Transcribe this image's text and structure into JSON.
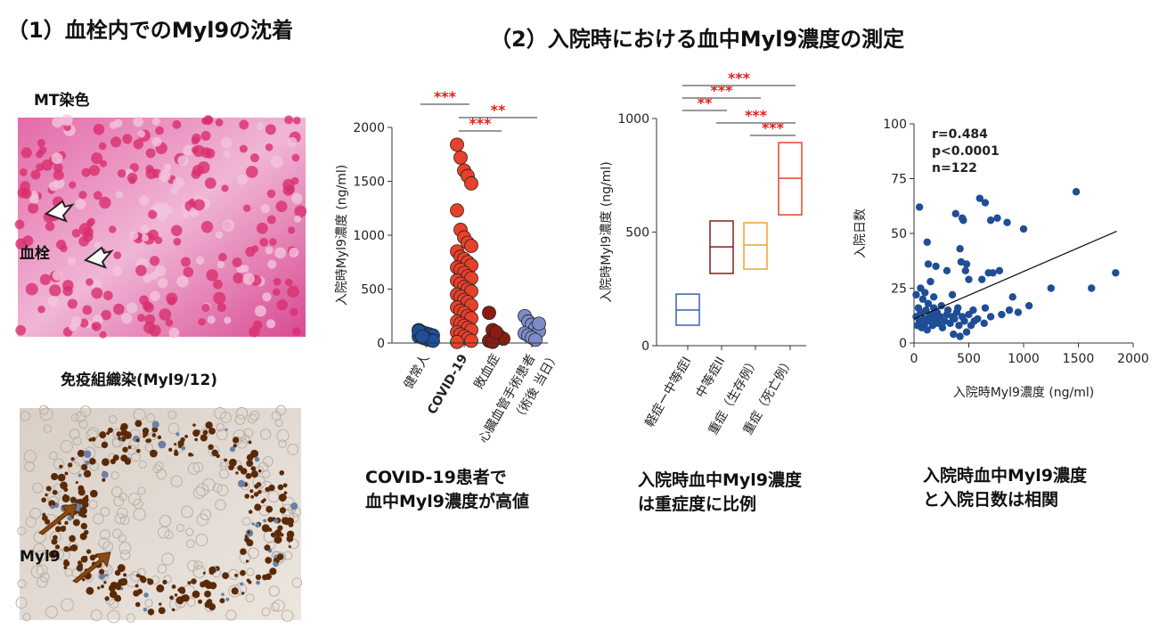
{
  "left": {
    "title": "（1）血栓内でのMyl9の沈着",
    "panels": [
      {
        "label": "MT染色",
        "annotation": "血栓"
      },
      {
        "label": "免疫組織染(Myl9/12)",
        "annotation": "Myl9"
      }
    ]
  },
  "right_title": "（2）入院時における血中Myl9濃度の測定",
  "chart_data": [
    {
      "type": "strip",
      "ylabel": "入院時Myl9濃度 (ng/ml)",
      "categories": [
        "健常人",
        "COVID-19",
        "敗血症",
        "心臓血管手術患者"
      ],
      "category_note": "（術後 当日）",
      "colors": [
        "#1f4e96",
        "#e8402a",
        "#8b1c12",
        "#7d8cc8"
      ],
      "values": [
        [
          120,
          100,
          90,
          80,
          70,
          60,
          50,
          40,
          30,
          20,
          110,
          60
        ],
        [
          1840,
          1720,
          1600,
          1550,
          1480,
          1230,
          1050,
          980,
          930,
          900,
          850,
          800,
          780,
          750,
          720,
          700,
          680,
          650,
          620,
          600,
          580,
          550,
          520,
          500,
          480,
          450,
          430,
          400,
          380,
          350,
          330,
          300,
          280,
          250,
          230,
          200,
          180,
          160,
          140,
          120,
          100,
          80,
          60,
          40,
          20,
          10
        ],
        [
          280,
          120,
          90,
          60,
          40,
          20,
          10,
          100
        ],
        [
          250,
          200,
          170,
          140,
          110,
          90,
          70,
          50,
          30,
          180
        ]
      ],
      "ylim": [
        0,
        2000
      ],
      "yticks": [
        0,
        500,
        1000,
        1500,
        2000
      ],
      "significance": [
        {
          "label": "***",
          "between": [
            "健常人",
            "COVID-19"
          ]
        },
        {
          "label": "**",
          "between": [
            "COVID-19",
            "心臓血管手術患者"
          ]
        },
        {
          "label": "***",
          "between": [
            "COVID-19",
            "敗血症"
          ]
        }
      ],
      "caption": [
        "COVID-19患者で",
        "血中Myl9濃度が高値"
      ]
    },
    {
      "type": "range",
      "ylabel": "入院時Myl9濃度 (ng/ml)",
      "categories": [
        "軽症ー中等症I",
        "中等症II",
        "重症（生存例）",
        "重症（死亡例）"
      ],
      "colors": [
        "#3a5fb0",
        "#8b1a1a",
        "#f0a030",
        "#e8452e"
      ],
      "low": [
        90,
        318,
        337,
        576
      ],
      "mid": [
        157,
        435,
        443,
        737
      ],
      "high": [
        227,
        549,
        541,
        894
      ],
      "ylim": [
        0,
        1000
      ],
      "yticks": [
        0,
        500,
        1000
      ],
      "significance": [
        {
          "label": "***",
          "between": [
            "軽症ー中等症I",
            "重症（死亡例）"
          ]
        },
        {
          "label": "***",
          "between": [
            "軽症ー中等症I",
            "重症（生存例）"
          ]
        },
        {
          "label": "**",
          "between": [
            "軽症ー中等症I",
            "中等症II"
          ]
        },
        {
          "label": "***",
          "between": [
            "中等症II",
            "重症（死亡例）"
          ]
        },
        {
          "label": "***",
          "between": [
            "重症（生存例）",
            "重症（死亡例）"
          ]
        }
      ],
      "caption": [
        "入院時血中Myl9濃度",
        "は重症度に比例"
      ]
    },
    {
      "type": "scatter",
      "xlabel": "入院時Myl9濃度 (ng/ml)",
      "ylabel": "入院日数",
      "color": "#1f4e96",
      "x": [
        50,
        120,
        130,
        200,
        300,
        350,
        380,
        420,
        430,
        440,
        450,
        470,
        480,
        500,
        600,
        650,
        620,
        680,
        700,
        720,
        760,
        850,
        780,
        870,
        900,
        950,
        1000,
        1050,
        1250,
        1480,
        1620,
        1840,
        800,
        650,
        550,
        520,
        480,
        420,
        360,
        20,
        30,
        40,
        50,
        60,
        70,
        80,
        90,
        100,
        110,
        120,
        130,
        140,
        150,
        160,
        170,
        180,
        200,
        210,
        220,
        240,
        250,
        260,
        280,
        300,
        310,
        330,
        350,
        370,
        390,
        400,
        410,
        440,
        460,
        500,
        540,
        580,
        640,
        700,
        20,
        60,
        100,
        150,
        180
      ],
      "y": [
        62,
        46,
        36,
        35,
        33,
        22,
        59,
        43,
        37,
        57,
        56,
        33,
        36,
        29,
        66,
        64,
        29,
        32,
        56,
        32,
        57,
        55,
        33,
        15,
        21,
        14,
        52,
        17,
        25,
        69,
        25,
        32,
        13,
        16,
        10,
        8,
        5,
        3,
        4,
        12,
        8,
        16,
        10,
        14,
        7,
        20,
        11,
        9,
        15,
        6,
        18,
        12,
        10,
        13,
        8,
        16,
        11,
        14,
        9,
        12,
        17,
        7,
        10,
        13,
        15,
        9,
        12,
        11,
        14,
        16,
        8,
        12,
        10,
        13,
        15,
        11,
        9,
        12,
        22,
        25,
        23,
        28,
        21
      ],
      "fit": {
        "x": [
          0,
          1850
        ],
        "y": [
          11,
          51
        ]
      },
      "xlim": [
        0,
        2000
      ],
      "xticks": [
        0,
        500,
        1000,
        1500,
        2000
      ],
      "ylim": [
        0,
        100
      ],
      "yticks": [
        0,
        25,
        50,
        75,
        100
      ],
      "annotations": [
        "r=0.484",
        "p<0.0001",
        "n=122"
      ],
      "caption": [
        "入院時血中Myl9濃度",
        "と入院日数は相関"
      ]
    }
  ]
}
